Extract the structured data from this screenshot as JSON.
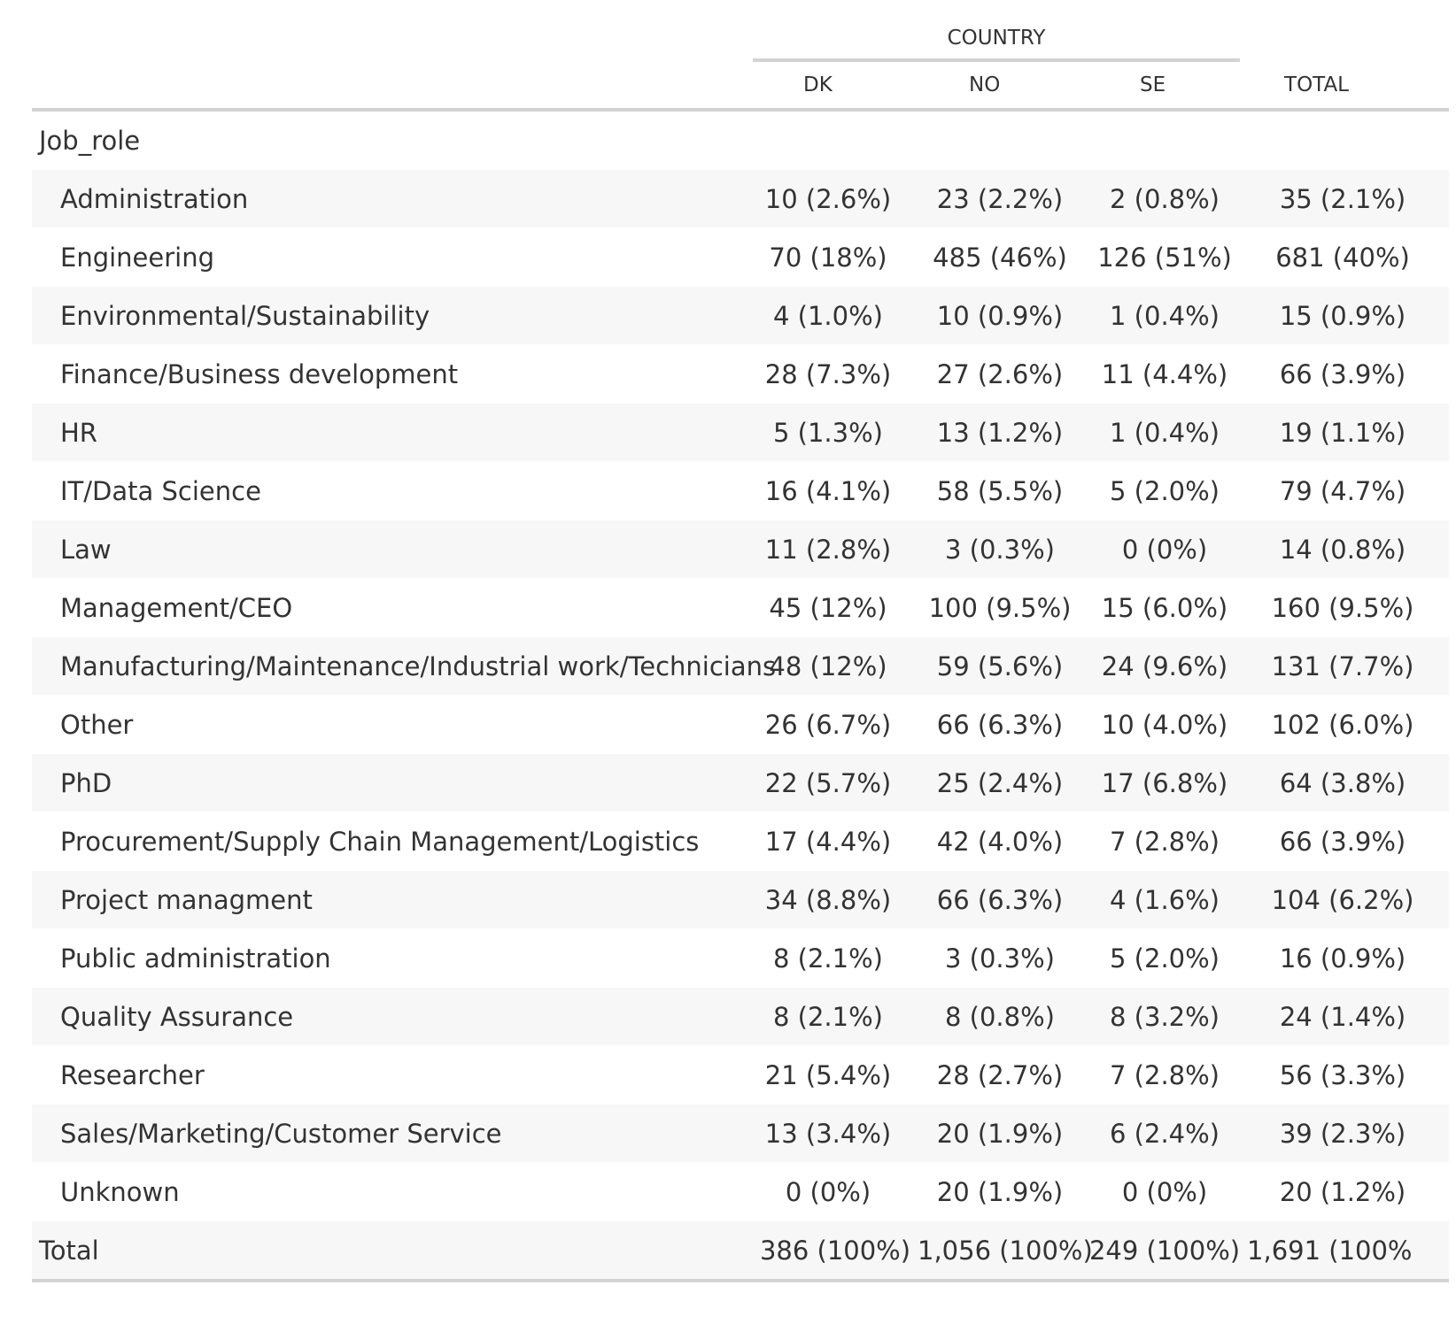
{
  "table": {
    "spanner_label": "COUNTRY",
    "columns": [
      "DK",
      "NO",
      "SE",
      "TOTAL"
    ],
    "group_label": "Job_role",
    "rows": [
      {
        "label": "Administration",
        "dk": "10 (2.6%)",
        "no": "23 (2.2%)",
        "se": "2 (0.8%)",
        "total": "35 (2.1%)"
      },
      {
        "label": "Engineering",
        "dk": "70 (18%)",
        "no": "485 (46%)",
        "se": "126 (51%)",
        "total": "681 (40%)"
      },
      {
        "label": "Environmental/Sustainability",
        "dk": "4 (1.0%)",
        "no": "10 (0.9%)",
        "se": "1 (0.4%)",
        "total": "15 (0.9%)"
      },
      {
        "label": "Finance/Business development",
        "dk": "28 (7.3%)",
        "no": "27 (2.6%)",
        "se": "11 (4.4%)",
        "total": "66 (3.9%)"
      },
      {
        "label": "HR",
        "dk": "5 (1.3%)",
        "no": "13 (1.2%)",
        "se": "1 (0.4%)",
        "total": "19 (1.1%)"
      },
      {
        "label": "IT/Data Science",
        "dk": "16 (4.1%)",
        "no": "58 (5.5%)",
        "se": "5 (2.0%)",
        "total": "79 (4.7%)"
      },
      {
        "label": "Law",
        "dk": "11 (2.8%)",
        "no": "3 (0.3%)",
        "se": "0 (0%)",
        "total": "14 (0.8%)"
      },
      {
        "label": "Management/CEO",
        "dk": "45 (12%)",
        "no": "100 (9.5%)",
        "se": "15 (6.0%)",
        "total": "160 (9.5%)"
      },
      {
        "label": "Manufacturing/Maintenance/Industrial work/Technicians",
        "dk": "48 (12%)",
        "no": "59 (5.6%)",
        "se": "24 (9.6%)",
        "total": "131 (7.7%)"
      },
      {
        "label": "Other",
        "dk": "26 (6.7%)",
        "no": "66 (6.3%)",
        "se": "10 (4.0%)",
        "total": "102 (6.0%)"
      },
      {
        "label": "PhD",
        "dk": "22 (5.7%)",
        "no": "25 (2.4%)",
        "se": "17 (6.8%)",
        "total": "64 (3.8%)"
      },
      {
        "label": "Procurement/Supply Chain Management/Logistics",
        "dk": "17 (4.4%)",
        "no": "42 (4.0%)",
        "se": "7 (2.8%)",
        "total": "66 (3.9%)"
      },
      {
        "label": "Project managment",
        "dk": "34 (8.8%)",
        "no": "66 (6.3%)",
        "se": "4 (1.6%)",
        "total": "104 (6.2%)"
      },
      {
        "label": "Public administration",
        "dk": "8 (2.1%)",
        "no": "3 (0.3%)",
        "se": "5 (2.0%)",
        "total": "16 (0.9%)"
      },
      {
        "label": "Quality Assurance",
        "dk": "8 (2.1%)",
        "no": "8 (0.8%)",
        "se": "8 (3.2%)",
        "total": "24 (1.4%)"
      },
      {
        "label": "Researcher",
        "dk": "21 (5.4%)",
        "no": "28 (2.7%)",
        "se": "7 (2.8%)",
        "total": "56 (3.3%)"
      },
      {
        "label": "Sales/Marketing/Customer Service",
        "dk": "13 (3.4%)",
        "no": "20 (1.9%)",
        "se": "6 (2.4%)",
        "total": "39 (2.3%)"
      },
      {
        "label": "Unknown",
        "dk": "0 (0%)",
        "no": "20 (1.9%)",
        "se": "0 (0%)",
        "total": "20 (1.2%)"
      }
    ],
    "total_row": {
      "label": "Total",
      "dk": "386 (100%)",
      "no": "1,056 (100%)",
      "se": "249 (100%)",
      "total": "1,691 (100%"
    }
  }
}
